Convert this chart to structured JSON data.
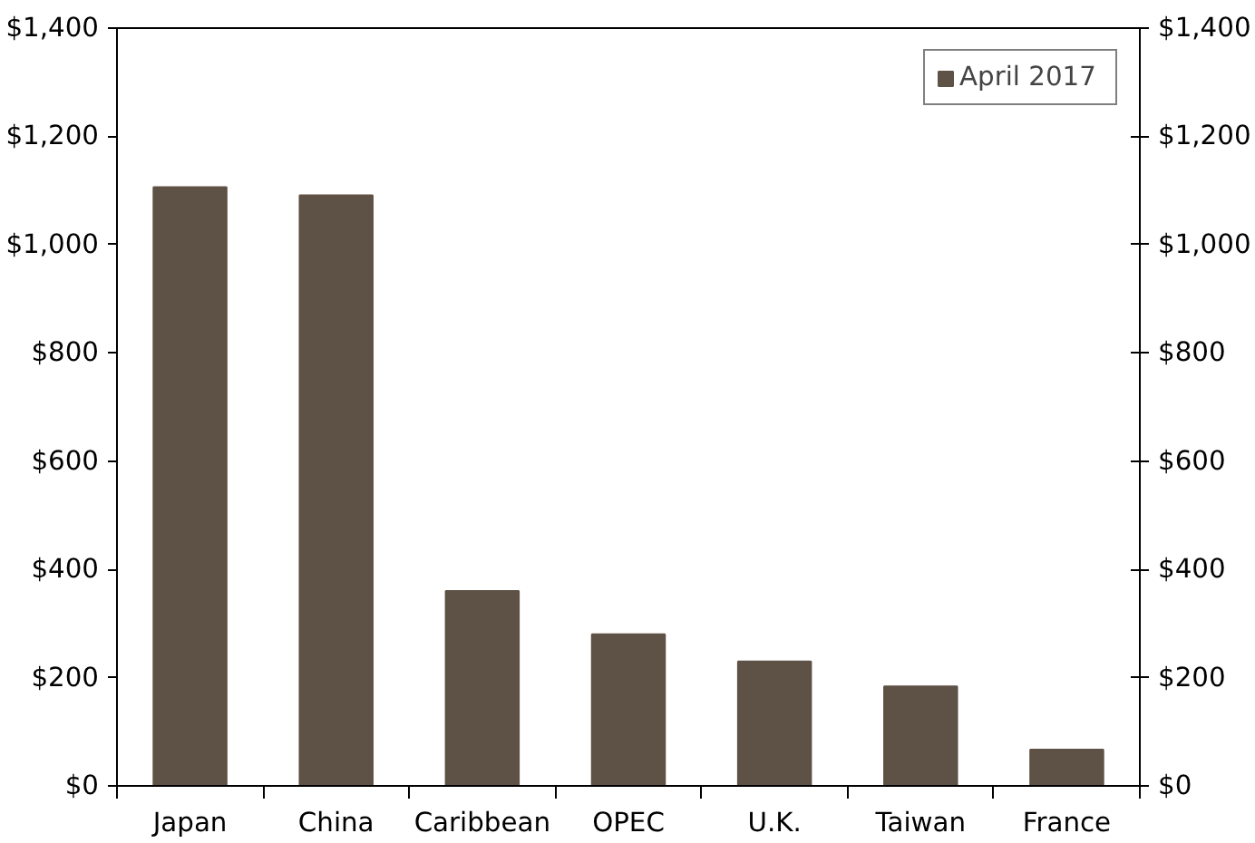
{
  "chart_data": {
    "type": "bar",
    "categories": [
      "Japan",
      "China",
      "Caribbean",
      "OPEC",
      "U.K.",
      "Taiwan",
      "France"
    ],
    "series": [
      {
        "name": "April 2017",
        "color": "#5e5145",
        "values": [
          1106,
          1091,
          360,
          280,
          230,
          184,
          67
        ]
      }
    ],
    "ylim": [
      0,
      1400
    ],
    "yticks": [
      {
        "value": 0,
        "label": "$0"
      },
      {
        "value": 200,
        "label": "$200"
      },
      {
        "value": 400,
        "label": "$400"
      },
      {
        "value": 600,
        "label": "$600"
      },
      {
        "value": 800,
        "label": "$800"
      },
      {
        "value": 1000,
        "label": "$1,000"
      },
      {
        "value": 1200,
        "label": "$1,200"
      },
      {
        "value": 1400,
        "label": "$1,400"
      }
    ],
    "y2lim": [
      0,
      1400
    ],
    "y2ticks": [
      {
        "value": 0,
        "label": "$0"
      },
      {
        "value": 200,
        "label": "$200"
      },
      {
        "value": 400,
        "label": "$400"
      },
      {
        "value": 600,
        "label": "$600"
      },
      {
        "value": 800,
        "label": "$800"
      },
      {
        "value": 1000,
        "label": "$1,000"
      },
      {
        "value": 1200,
        "label": "$1,200"
      },
      {
        "value": 1400,
        "label": "$1,400"
      }
    ],
    "grid": false,
    "legend": "top right"
  }
}
